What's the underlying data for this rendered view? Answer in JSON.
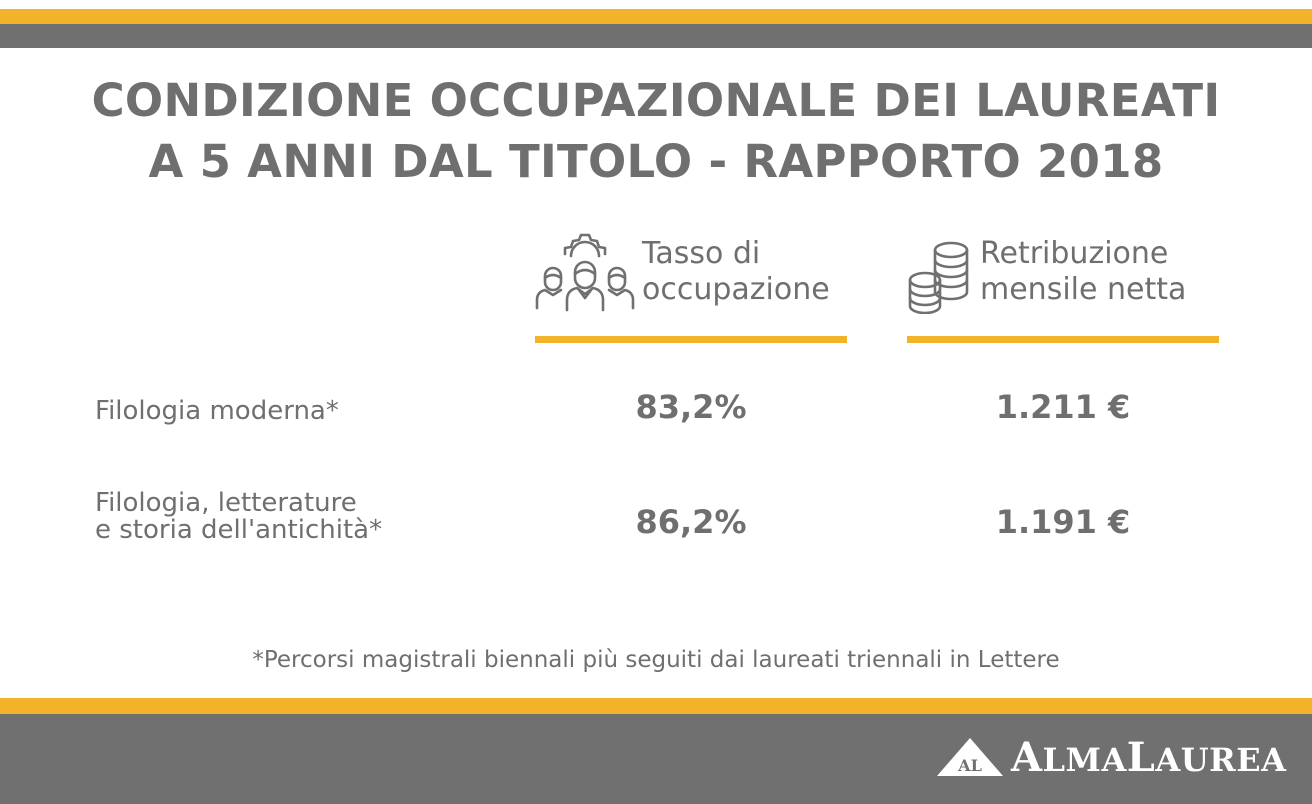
{
  "title": {
    "line1": "CONDIZIONE OCCUPAZIONALE DEI LAUREATI",
    "line2": "A 5 ANNI DAL TITOLO - RAPPORTO 2018"
  },
  "columns": [
    {
      "line1": "Tasso di",
      "line2": "occupazione",
      "icon": "people-gear-icon"
    },
    {
      "line1": "Retribuzione",
      "line2": "mensile netta",
      "icon": "coins-icon"
    }
  ],
  "rows": [
    {
      "label_line1": "Filologia moderna*",
      "label_line2": "",
      "occupazione": "83,2%",
      "retribuzione": "1.211 €"
    },
    {
      "label_line1": "Filologia, letterature",
      "label_line2": "e storia dell'antichità*",
      "occupazione": "86,2%",
      "retribuzione": "1.191 €"
    }
  ],
  "footnote": "*Percorsi magistrali biennali più seguiti dai laureati triennali in Lettere",
  "logo": {
    "mark": "AL",
    "name_first_initial": "A",
    "name_first_rest": "LMA",
    "name_second_initial": "L",
    "name_second_rest": "AUREA"
  },
  "colors": {
    "accent": "#f2b22a",
    "band": "#707070",
    "text": "#6f6f6f"
  }
}
